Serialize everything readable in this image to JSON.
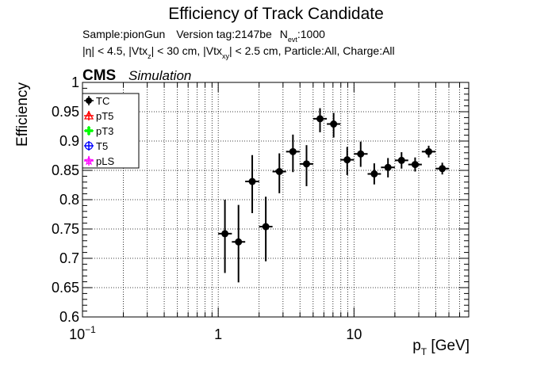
{
  "chart_data": {
    "type": "scatter",
    "title": "Efficiency of Track Candidate",
    "info": {
      "sample": "Sample:pionGun",
      "version": "Version tag:2147be",
      "nevt_label": "N",
      "nevt_sub": "evt",
      "nevt_value": ":1000",
      "cuts": {
        "eta": "|η| < 4.5, |Vtx",
        "z_sub": "z",
        "z_text": "| < 30 cm, |Vtx",
        "xy_sub": "xy",
        "xy_text": "| < 2.5 cm, Particle:All, Charge:All"
      }
    },
    "cms_label": "CMS",
    "simulation_label": "Simulation",
    "ylabel": "Efficiency",
    "xlabel_main": "p",
    "xlabel_sub": "T",
    "xlabel_unit": " [GeV]",
    "x_scale": "log",
    "xlim": [
      0.1,
      70
    ],
    "ylim": [
      0.6,
      1.0
    ],
    "grid": true,
    "x_major_ticks": [
      {
        "value": 0.1,
        "base": "10",
        "exp": "−1"
      },
      {
        "value": 1,
        "base": "1",
        "exp": ""
      },
      {
        "value": 10,
        "base": "10",
        "exp": ""
      }
    ],
    "y_ticks": [
      {
        "value": 0.6,
        "label": "0.6"
      },
      {
        "value": 0.65,
        "label": "0.65"
      },
      {
        "value": 0.7,
        "label": "0.7"
      },
      {
        "value": 0.75,
        "label": "0.75"
      },
      {
        "value": 0.8,
        "label": "0.8"
      },
      {
        "value": 0.85,
        "label": "0.85"
      },
      {
        "value": 0.9,
        "label": "0.9"
      },
      {
        "value": 0.95,
        "label": "0.95"
      },
      {
        "value": 1.0,
        "label": "1"
      }
    ],
    "legend_position": "top-left",
    "legend": [
      {
        "name": "TC",
        "color": "#000000",
        "marker": "filled-circle"
      },
      {
        "name": "pT5",
        "color": "#ff0000",
        "marker": "open-triangle"
      },
      {
        "name": "pT3",
        "color": "#00ff00",
        "marker": "filled-cross"
      },
      {
        "name": "T5",
        "color": "#0000ff",
        "marker": "open-circle"
      },
      {
        "name": "pLS",
        "color": "#ff00ff",
        "marker": "open-star"
      }
    ],
    "series": [
      {
        "name": "TC",
        "color": "#000000",
        "points": [
          {
            "x": 1.12,
            "xlo": 1.0,
            "xhi": 1.26,
            "y": 0.742,
            "ylo": 0.675,
            "yhi": 0.8
          },
          {
            "x": 1.41,
            "xlo": 1.26,
            "xhi": 1.58,
            "y": 0.728,
            "ylo": 0.659,
            "yhi": 0.791
          },
          {
            "x": 1.78,
            "xlo": 1.58,
            "xhi": 2.0,
            "y": 0.831,
            "ylo": 0.777,
            "yhi": 0.876
          },
          {
            "x": 2.24,
            "xlo": 2.0,
            "xhi": 2.51,
            "y": 0.754,
            "ylo": 0.695,
            "yhi": 0.805
          },
          {
            "x": 2.82,
            "xlo": 2.51,
            "xhi": 3.16,
            "y": 0.848,
            "ylo": 0.811,
            "yhi": 0.879
          },
          {
            "x": 3.55,
            "xlo": 3.16,
            "xhi": 3.98,
            "y": 0.882,
            "ylo": 0.847,
            "yhi": 0.911
          },
          {
            "x": 4.47,
            "xlo": 3.98,
            "xhi": 5.01,
            "y": 0.861,
            "ylo": 0.823,
            "yhi": 0.893
          },
          {
            "x": 5.62,
            "xlo": 5.01,
            "xhi": 6.31,
            "y": 0.938,
            "ylo": 0.915,
            "yhi": 0.956
          },
          {
            "x": 7.08,
            "xlo": 6.31,
            "xhi": 7.94,
            "y": 0.929,
            "ylo": 0.906,
            "yhi": 0.948
          },
          {
            "x": 8.91,
            "xlo": 7.94,
            "xhi": 10.0,
            "y": 0.868,
            "ylo": 0.842,
            "yhi": 0.89
          },
          {
            "x": 11.2,
            "xlo": 10.0,
            "xhi": 12.6,
            "y": 0.878,
            "ylo": 0.856,
            "yhi": 0.899
          },
          {
            "x": 14.1,
            "xlo": 12.6,
            "xhi": 15.8,
            "y": 0.844,
            "ylo": 0.826,
            "yhi": 0.862
          },
          {
            "x": 17.8,
            "xlo": 15.8,
            "xhi": 20.0,
            "y": 0.855,
            "ylo": 0.838,
            "yhi": 0.871
          },
          {
            "x": 22.4,
            "xlo": 20.0,
            "xhi": 25.1,
            "y": 0.867,
            "ylo": 0.853,
            "yhi": 0.881
          },
          {
            "x": 28.2,
            "xlo": 25.1,
            "xhi": 31.6,
            "y": 0.86,
            "ylo": 0.848,
            "yhi": 0.872
          },
          {
            "x": 35.5,
            "xlo": 31.6,
            "xhi": 39.8,
            "y": 0.882,
            "ylo": 0.872,
            "yhi": 0.892
          },
          {
            "x": 44.7,
            "xlo": 39.8,
            "xhi": 50.1,
            "y": 0.853,
            "ylo": 0.843,
            "yhi": 0.863
          }
        ]
      }
    ]
  }
}
